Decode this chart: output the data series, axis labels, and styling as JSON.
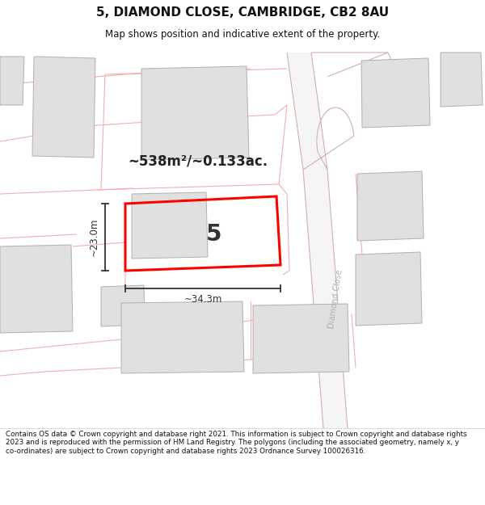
{
  "title": "5, DIAMOND CLOSE, CAMBRIDGE, CB2 8AU",
  "subtitle": "Map shows position and indicative extent of the property.",
  "area_label": "~538m²/~0.133ac.",
  "plot_number": "5",
  "width_label": "~34.3m",
  "height_label": "~23.0m",
  "footer": "Contains OS data © Crown copyright and database right 2021. This information is subject to Crown copyright and database rights 2023 and is reproduced with the permission of HM Land Registry. The polygons (including the associated geometry, namely x, y co-ordinates) are subject to Crown copyright and database rights 2023 Ordnance Survey 100026316.",
  "bg_color": "#ffffff",
  "map_bg": "#ffffff",
  "building_fill": "#e0e0e0",
  "building_edge": "#b0b0b0",
  "plot_outline": "#ff0000",
  "boundary_line": "#f0b0b0",
  "road_edge": "#d0b0b0",
  "road_fill": "#f0f0f0",
  "street_label_color": "#b0b0b0",
  "dim_color": "#333333",
  "title_color": "#111111",
  "footer_color": "#111111"
}
